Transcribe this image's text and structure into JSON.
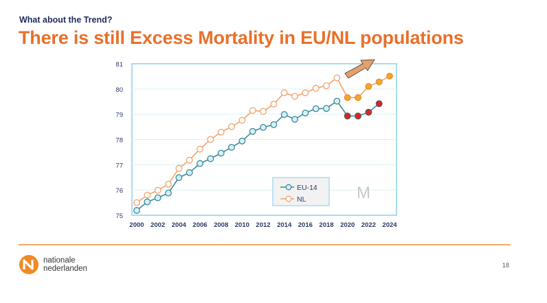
{
  "header": {
    "kicker": "What about the Trend?",
    "title": "There is still Excess Mortality in EU/NL populations"
  },
  "chart_data": {
    "type": "line",
    "xlim": [
      2000,
      2024
    ],
    "ylim": [
      75,
      81
    ],
    "x_ticks": [
      "2000",
      "2002",
      "2004",
      "2006",
      "2008",
      "2010",
      "2012",
      "2014",
      "2016",
      "2018",
      "2020",
      "2022",
      "2024"
    ],
    "y_ticks": [
      "75",
      "76",
      "77",
      "78",
      "79",
      "80",
      "81"
    ],
    "grid": true,
    "legend_placement": "bottom-right",
    "series": [
      {
        "name": "EU-14",
        "color": "#3d8a96",
        "marker_fill": "#d5f0f7",
        "highlight_fill": "#e32222",
        "highlight_from": 2020,
        "x": [
          2000,
          2001,
          2002,
          2003,
          2004,
          2005,
          2006,
          2007,
          2008,
          2009,
          2010,
          2011,
          2012,
          2013,
          2014,
          2015,
          2016,
          2017,
          2018,
          2019,
          2020,
          2021,
          2022,
          2023
        ],
        "y": [
          75.19,
          75.53,
          75.69,
          75.88,
          76.49,
          76.69,
          77.05,
          77.24,
          77.46,
          77.69,
          77.94,
          78.32,
          78.48,
          78.59,
          78.99,
          78.8,
          79.05,
          79.22,
          79.23,
          79.52,
          78.93,
          78.93,
          79.08,
          79.42
        ]
      },
      {
        "name": "NL",
        "color": "#f0a36a",
        "marker_fill": "#ffffff",
        "highlight_fill": "#f5a623",
        "highlight_from": 2020,
        "x": [
          2000,
          2001,
          2002,
          2003,
          2004,
          2005,
          2006,
          2007,
          2008,
          2009,
          2010,
          2011,
          2012,
          2013,
          2014,
          2015,
          2016,
          2017,
          2018,
          2019,
          2020,
          2021,
          2022,
          2023,
          2024
        ],
        "y": [
          75.5,
          75.8,
          75.99,
          76.23,
          76.86,
          77.18,
          77.62,
          78.0,
          78.29,
          78.51,
          78.76,
          79.15,
          79.11,
          79.4,
          79.85,
          79.71,
          79.85,
          80.03,
          80.13,
          80.44,
          79.66,
          79.66,
          80.1,
          80.28,
          80.51
        ]
      }
    ],
    "annotation": {
      "type": "arrow",
      "direction": "up-right",
      "color": "#e8a06a"
    },
    "watermark": "M"
  },
  "footer": {
    "logo_line1": "nationale",
    "logo_line2": "nederlanden",
    "page_number": "18",
    "accent": "#e8702a"
  }
}
